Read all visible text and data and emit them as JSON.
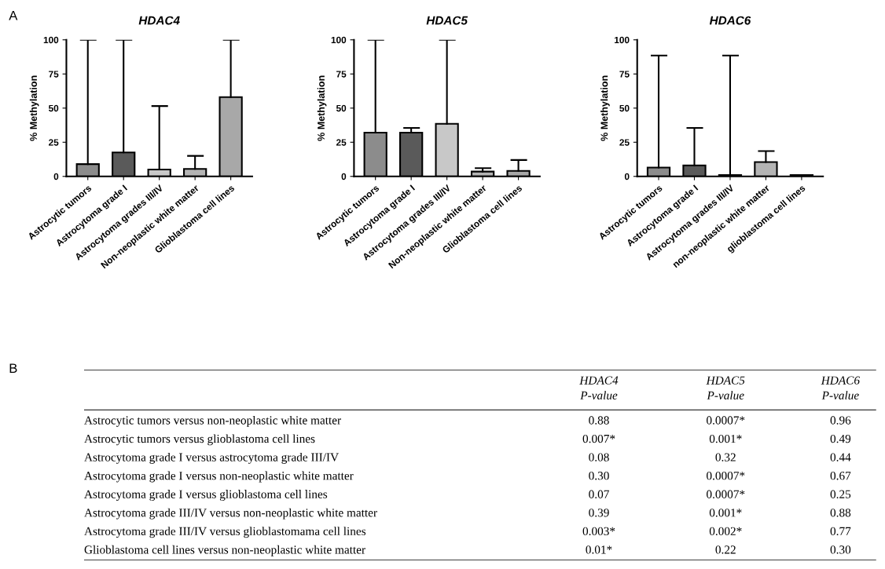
{
  "chart_data": [
    {
      "type": "bar",
      "title": "HDAC4",
      "ylabel": "% Methylation",
      "annotations": [
        "A"
      ],
      "categories": [
        "Astrocytic tumors",
        "Astrocytoma grade I",
        "Astrocytoma grades III/IV",
        "Non-neoplastic white matter",
        "Glioblastoma cell lines"
      ],
      "values": [
        9,
        17.5,
        5,
        5.5,
        58
      ],
      "errors": [
        [
          9,
          100
        ],
        [
          17.5,
          100
        ],
        [
          5,
          51.5
        ],
        [
          5.5,
          15
        ],
        [
          58,
          100
        ]
      ],
      "colors": [
        "#8c8c8c",
        "#5a5a5a",
        "#c8c8c8",
        "#b4b4b4",
        "#a8a8a8"
      ],
      "ylim": [
        0,
        100
      ],
      "yticks": [
        0,
        25,
        50,
        75,
        100
      ],
      "grid": false
    },
    {
      "type": "bar",
      "title": "HDAC5",
      "ylabel": "% Methylation",
      "categories": [
        "Astrocytic tumors",
        "Astrocytoma grade I",
        "Astrocytoma grades III/IV",
        "Non-neoplastic white matter",
        "Glioblastoma cell lines"
      ],
      "values": [
        32,
        32,
        38.5,
        3.5,
        4
      ],
      "errors": [
        [
          32,
          100
        ],
        [
          32,
          35.5
        ],
        [
          38.5,
          100
        ],
        [
          3.5,
          6
        ],
        [
          4,
          12
        ]
      ],
      "colors": [
        "#8c8c8c",
        "#5a5a5a",
        "#c8c8c8",
        "#b4b4b4",
        "#a8a8a8"
      ],
      "ylim": [
        0,
        100
      ],
      "yticks": [
        0,
        25,
        50,
        75,
        100
      ],
      "grid": false
    },
    {
      "type": "bar",
      "title": "HDAC6",
      "ylabel": "% Methylation",
      "categories": [
        "Astrocytic tumors",
        "Astrocytoma grade I",
        "Astrocytoma grades III/IV",
        "non-neoplastic white matter",
        "glioblastoma cell lines"
      ],
      "values": [
        6.5,
        8,
        1,
        10.5,
        1
      ],
      "errors": [
        [
          6.5,
          88.5
        ],
        [
          8,
          35.5
        ],
        [
          1,
          88.5
        ],
        [
          10.5,
          18.5
        ],
        null
      ],
      "colors": [
        "#8c8c8c",
        "#5a5a5a",
        "#c8c8c8",
        "#b4b4b4",
        "#a8a8a8"
      ],
      "ylim": [
        0,
        100
      ],
      "yticks": [
        0,
        25,
        50,
        75,
        100
      ],
      "grid": false
    },
    {
      "type": "other",
      "title": "B",
      "categories": [
        null,
        "HDAC4\nP-value",
        "HDAC5\nP-value",
        "HDAC6\nP-value"
      ],
      "annotations": [
        "Astrocytic tumors versus non-neoplastic white matter",
        "0.88",
        "0.0007*",
        "0.96",
        "Astrocytic tumors versus glioblastoma cell lines",
        "0.007*",
        "0.001*",
        "0.49",
        "Astrocytoma grade I versus astrocytoma grade III/IV",
        "0.08",
        "0.32",
        "0.44",
        "Astrocytoma grade I versus non-neoplastic white matter",
        "0.30",
        "0.0007*",
        "0.67",
        "Astrocytoma grade I versus glioblastoma cell lines",
        "0.07",
        "0.0007*",
        "0.25",
        "Astrocytoma grade III/IV versus non-neoplastic white matter",
        "0.39",
        "0.001*",
        "0.88",
        "Astrocytoma grade III/IV versus glioblastomama cell lines",
        "0.003*",
        "0.002*",
        "0.77",
        "Glioblastoma cell lines versus non-neoplastic white matter",
        "0.01*",
        "0.22",
        "0.30"
      ]
    }
  ]
}
